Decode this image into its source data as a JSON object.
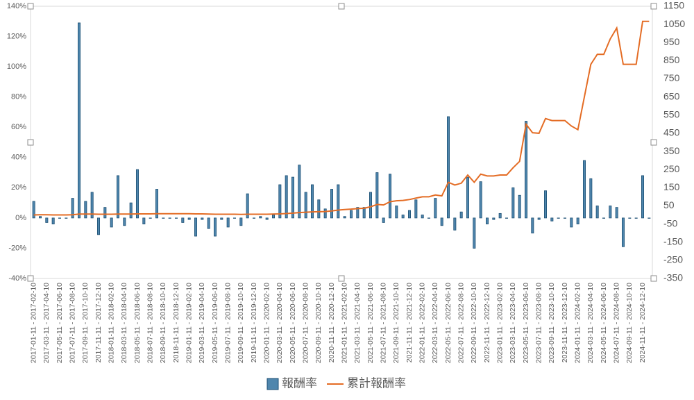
{
  "chart_data": {
    "type": "bar-line",
    "categories": [
      "2017-01-11 - 2017-02-10",
      null,
      "2017-03-11 - 2017-04-10",
      null,
      "2017-05-11 - 2017-06-10",
      null,
      "2017-07-11 - 2017-08-10",
      null,
      "2017-09-11 - 2017-10-10",
      null,
      "2017-11-11 - 2017-12-10",
      null,
      "2018-01-11 - 2018-02-10",
      null,
      "2018-03-11 - 2018-04-10",
      null,
      "2018-05-11 - 2018-06-10",
      null,
      "2018-07-11 - 2018-08-10",
      null,
      "2018-09-11 - 2018-10-10",
      null,
      "2018-11-11 - 2018-12-10",
      null,
      "2019-01-11 - 2019-02-10",
      null,
      "2019-03-11 - 2019-04-10",
      null,
      "2019-05-11 - 2019-06-10",
      null,
      "2019-07-11 - 2019-08-10",
      null,
      "2019-09-11 - 2019-10-10",
      null,
      "2019-11-11 - 2019-12-10",
      null,
      "2020-01-11 - 2020-02-10",
      null,
      "2020-03-11 - 2020-04-10",
      null,
      "2020-05-11 - 2020-06-10",
      null,
      "2020-07-11 - 2020-08-10",
      null,
      "2020-09-11 - 2020-10-10",
      null,
      "2020-11-11 - 2020-12-10",
      null,
      "2021-01-11 - 2021-02-10",
      null,
      "2021-03-11 - 2021-04-10",
      null,
      "2021-05-11 - 2021-06-10",
      null,
      "2021-07-11 - 2021-08-10",
      null,
      "2021-09-11 - 2021-10-10",
      null,
      "2021-11-11 - 2021-12-10",
      null,
      "2022-01-11 - 2022-02-10",
      null,
      "2022-03-11 - 2022-04-10",
      null,
      "2022-05-11 - 2022-06-10",
      null,
      "2022-07-11 - 2022-08-10",
      null,
      "2022-09-11 - 2022-10-10",
      null,
      "2022-11-11 - 2022-12-10",
      null,
      "2023-01-11 - 2023-02-10",
      null,
      "2023-03-11 - 2023-04-10",
      null,
      "2023-05-11 - 2023-06-10",
      null,
      "2023-07-11 - 2023-08-10",
      null,
      "2023-09-11 - 2023-10-10",
      null,
      "2023-11-11 - 2023-12-10",
      null,
      "2024-01-11 - 2024-02-10",
      null,
      "2024-03-11 - 2024-04-10",
      null,
      "2024-05-11 - 2024-06-10",
      null,
      "2024-07-11 - 2024-08-10",
      null,
      "2024-09-11 - 2024-10-10",
      null,
      "2024-11-11 - 2024-12-10",
      null
    ],
    "series": [
      {
        "name": "報酬率",
        "type": "bar",
        "color": "#4f86ad",
        "values": [
          11,
          1,
          -3,
          -4,
          0,
          0,
          13,
          129,
          11,
          17,
          -11,
          7,
          -6,
          28,
          -5,
          10,
          32,
          -4,
          0,
          19,
          0,
          0,
          0,
          -3,
          -1,
          -12,
          -1,
          -7,
          -12,
          -1,
          -6,
          0,
          -5,
          16,
          0,
          1,
          -1,
          2,
          22,
          28,
          27,
          35,
          17,
          22,
          12,
          6,
          19,
          22,
          1,
          5,
          7,
          7,
          17,
          30,
          -3,
          29,
          8,
          2,
          5,
          12,
          2,
          0,
          13,
          -5,
          67,
          -8,
          4,
          27,
          -20,
          24,
          -4,
          -1,
          3,
          0,
          20,
          15,
          64,
          -10,
          -1,
          18,
          -2,
          0,
          0,
          -6,
          -4,
          38,
          26,
          8,
          0,
          8,
          7,
          -19,
          0,
          0,
          28,
          0
        ]
      },
      {
        "name": "累計報酬率",
        "type": "line",
        "axis": "y2",
        "color": "#e46c24",
        "values": [
          0,
          1,
          1,
          0,
          0,
          0,
          1,
          5,
          5,
          5,
          4,
          4,
          4,
          5,
          5,
          5,
          6,
          6,
          6,
          7,
          7,
          7,
          7,
          7,
          7,
          6,
          6,
          5,
          4,
          4,
          4,
          4,
          3,
          4,
          4,
          4,
          4,
          5,
          6,
          8,
          10,
          13,
          15,
          17,
          18,
          19,
          22,
          27,
          30,
          32,
          35,
          37,
          45,
          58,
          55,
          73,
          78,
          80,
          85,
          93,
          100,
          100,
          110,
          105,
          180,
          165,
          175,
          220,
          180,
          225,
          215,
          215,
          220,
          220,
          260,
          295,
          500,
          453,
          450,
          531,
          520,
          520,
          520,
          490,
          470,
          650,
          830,
          885,
          885,
          970,
          1030,
          830,
          830,
          830,
          1067,
          1067
        ]
      }
    ],
    "ylim": [
      -40,
      140
    ],
    "yticks": [
      {
        "value": -40,
        "label": "-40%"
      },
      {
        "value": -20,
        "label": "-20%"
      },
      {
        "value": 0,
        "label": "0%"
      },
      {
        "value": 20,
        "label": "20%"
      },
      {
        "value": 40,
        "label": "40%"
      },
      {
        "value": 60,
        "label": "60%"
      },
      {
        "value": 80,
        "label": "80%"
      },
      {
        "value": 100,
        "label": "100%"
      },
      {
        "value": 120,
        "label": "120%"
      },
      {
        "value": 140,
        "label": "140%"
      }
    ],
    "y2lim": [
      -350,
      1150
    ],
    "y2ticks": [
      -350,
      -250,
      -150,
      -50,
      50,
      150,
      250,
      350,
      450,
      550,
      650,
      750,
      850,
      950,
      1050,
      1150
    ],
    "grid": false,
    "legend": "bottom"
  }
}
